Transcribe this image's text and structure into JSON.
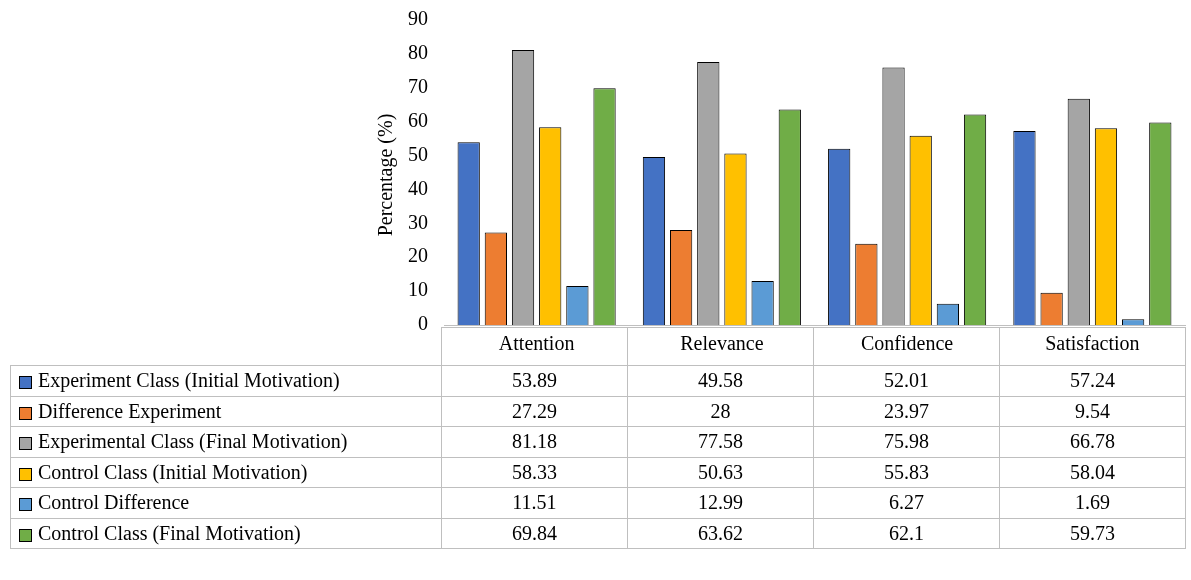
{
  "chart_data": {
    "type": "bar",
    "ylabel": "Percentage (%)",
    "categories": [
      "Attention",
      "Relevance",
      "Confidence",
      "Satisfaction"
    ],
    "series": [
      {
        "name": "Experiment Class (Initial Motivation)",
        "color": "#4472c4",
        "values": [
          53.89,
          49.58,
          52.01,
          57.24
        ]
      },
      {
        "name": "Difference Experiment",
        "color": "#ed7d31",
        "values": [
          27.29,
          28,
          23.97,
          9.54
        ]
      },
      {
        "name": "Experimental Class (Final Motivation)",
        "color": "#a5a5a5",
        "values": [
          81.18,
          77.58,
          75.98,
          66.78
        ]
      },
      {
        "name": "Control Class (Initial Motivation)",
        "color": "#ffc000",
        "values": [
          58.33,
          50.63,
          55.83,
          58.04
        ]
      },
      {
        "name": "Control Difference",
        "color": "#5b9bd5",
        "values": [
          11.51,
          12.99,
          6.27,
          1.69
        ]
      },
      {
        "name": "Control Class (Final Motivation)",
        "color": "#70ad47",
        "values": [
          69.84,
          63.62,
          62.1,
          59.73
        ]
      }
    ],
    "ylim": [
      0,
      90
    ],
    "yticks": [
      0,
      10,
      20,
      30,
      40,
      50,
      60,
      70,
      80,
      90
    ],
    "grid": false,
    "legend": "bottom",
    "data_labels": true
  }
}
